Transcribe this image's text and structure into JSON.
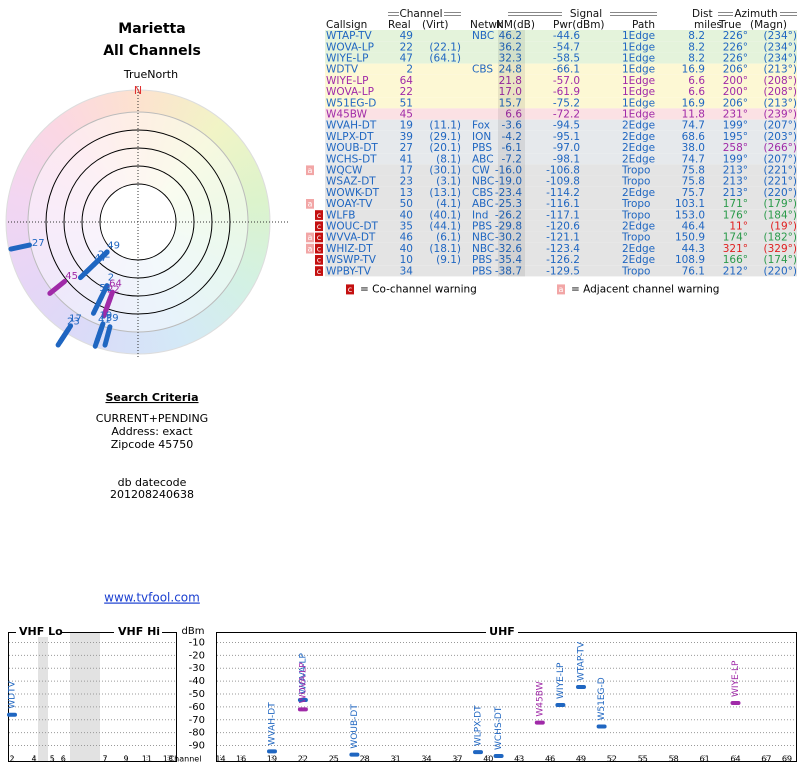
{
  "header": {
    "title": "Marietta",
    "subtitle": "All Channels"
  },
  "polar": {
    "north_label": "TrueNorth",
    "north_mark": "N",
    "stations": [
      {
        "label": "49",
        "azimuth": 226,
        "nm": 46.2,
        "color": "#1f66c1"
      },
      {
        "label": "22",
        "azimuth": 226,
        "nm": 36.2,
        "color": "#1f66c1"
      },
      {
        "label": "47",
        "azimuth": 226,
        "nm": 32.3,
        "color": "#1f66c1"
      },
      {
        "label": "2",
        "azimuth": 206,
        "nm": 24.8,
        "color": "#1f66c1"
      },
      {
        "label": "64",
        "azimuth": 200,
        "nm": 21.8,
        "color": "#a02aa8"
      },
      {
        "label": "22",
        "azimuth": 200,
        "nm": 17.0,
        "color": "#a02aa8"
      },
      {
        "label": "51",
        "azimuth": 206,
        "nm": 15.7,
        "color": "#1f66c1"
      },
      {
        "label": "45",
        "azimuth": 231,
        "nm": 6.6,
        "color": "#a02aa8"
      },
      {
        "label": "19",
        "azimuth": 199,
        "nm": -3.6,
        "color": "#1f66c1"
      },
      {
        "label": "39",
        "azimuth": 195,
        "nm": -4.2,
        "color": "#1f66c1"
      },
      {
        "label": "27",
        "azimuth": 258,
        "nm": -6.1,
        "color": "#1f66c1"
      },
      {
        "label": "41",
        "azimuth": 199,
        "nm": -7.2,
        "color": "#1f66c1"
      },
      {
        "label": "17",
        "azimuth": 213,
        "nm": -16.0,
        "color": "#1f66c1"
      },
      {
        "label": "23",
        "azimuth": 213,
        "nm": -19.0,
        "color": "#1f66c1"
      }
    ]
  },
  "search": {
    "title": "Search Criteria",
    "lines": [
      "CURRENT+PENDING",
      "Address: exact",
      "Zipcode 45750"
    ],
    "datecode_label": "db datecode",
    "datecode": "201208240638"
  },
  "link": "www.tvfool.com",
  "table": {
    "groups": {
      "channel": "Channel",
      "signal": "Signal",
      "dist": "Dist",
      "azimuth": "Azimuth"
    },
    "headers": {
      "call": "Callsign",
      "real": "Real",
      "virt": "(Virt)",
      "netwk": "Netwk",
      "nm": "NM(dB)",
      "pwr": "Pwr(dBm)",
      "path": "Path",
      "dist": "miles",
      "az": "True",
      "magn": "(Magn)"
    },
    "rows": [
      {
        "call": "WTAP-TV",
        "real": "49",
        "netwk": "NBC",
        "nm": "46.2",
        "pwr": "-44.6",
        "path": "1Edge",
        "dist": "8.2",
        "az": "226°",
        "magn": "(234°)",
        "color": "#1f66c1",
        "bg": "#e4f3db"
      },
      {
        "call": "WOVA-LP",
        "real": "22",
        "virt": "(22.1)",
        "nm": "36.2",
        "pwr": "-54.7",
        "path": "1Edge",
        "dist": "8.2",
        "az": "226°",
        "magn": "(234°)",
        "color": "#1f66c1",
        "bg": "#e4f3db"
      },
      {
        "call": "WIYE-LP",
        "real": "47",
        "virt": "(64.1)",
        "nm": "32.3",
        "pwr": "-58.5",
        "path": "1Edge",
        "dist": "8.2",
        "az": "226°",
        "magn": "(234°)",
        "color": "#1f66c1",
        "bg": "#e4f3db"
      },
      {
        "call": "WDTV",
        "real": "2",
        "netwk": "CBS",
        "nm": "24.8",
        "pwr": "-66.1",
        "path": "1Edge",
        "dist": "16.9",
        "az": "206°",
        "magn": "(213°)",
        "color": "#1f66c1",
        "bg": "#fdf8d4"
      },
      {
        "call": "WIYE-LP",
        "real": "64",
        "nm": "21.8",
        "pwr": "-57.0",
        "path": "1Edge",
        "dist": "6.6",
        "az": "200°",
        "magn": "(208°)",
        "color": "#a02aa8",
        "bg": "#fdf8d4"
      },
      {
        "call": "WOVA-LP",
        "real": "22",
        "nm": "17.0",
        "pwr": "-61.9",
        "path": "1Edge",
        "dist": "6.6",
        "az": "200°",
        "magn": "(208°)",
        "color": "#a02aa8",
        "bg": "#fdf8d4"
      },
      {
        "call": "W51EG-D",
        "real": "51",
        "nm": "15.7",
        "pwr": "-75.2",
        "path": "1Edge",
        "dist": "16.9",
        "az": "206°",
        "magn": "(213°)",
        "color": "#1f66c1",
        "bg": "#fdf8d4"
      },
      {
        "call": "W45BW",
        "real": "45",
        "nm": "6.6",
        "pwr": "-72.2",
        "path": "1Edge",
        "dist": "11.8",
        "az": "231°",
        "magn": "(239°)",
        "color": "#a02aa8",
        "bg": "#fbe1e4"
      },
      {
        "call": "WVAH-DT",
        "real": "19",
        "virt": "(11.1)",
        "netwk": "Fox",
        "nm": "-3.6",
        "pwr": "-94.5",
        "path": "2Edge",
        "dist": "74.7",
        "az": "199°",
        "magn": "(207°)",
        "color": "#1f66c1",
        "bg": "#e6e9ec"
      },
      {
        "call": "WLPX-DT",
        "real": "39",
        "virt": "(29.1)",
        "netwk": "ION",
        "nm": "-4.2",
        "pwr": "-95.1",
        "path": "2Edge",
        "dist": "68.6",
        "az": "195°",
        "magn": "(203°)",
        "color": "#1f66c1",
        "bg": "#e6e9ec"
      },
      {
        "call": "WOUB-DT",
        "real": "27",
        "virt": "(20.1)",
        "netwk": "PBS",
        "nm": "-6.1",
        "pwr": "-97.0",
        "path": "2Edge",
        "dist": "38.0",
        "az": "258°",
        "magn": "(266°)",
        "color": "#1f66c1",
        "az_color": "#a02aa8",
        "bg": "#e6e9ec"
      },
      {
        "call": "WCHS-DT",
        "real": "41",
        "virt": "(8.1)",
        "netwk": "ABC",
        "nm": "-7.2",
        "pwr": "-98.1",
        "path": "2Edge",
        "dist": "74.7",
        "az": "199°",
        "magn": "(207°)",
        "color": "#1f66c1",
        "bg": "#e6e9ec"
      },
      {
        "call": "WQCW",
        "real": "17",
        "virt": "(30.1)",
        "netwk": "CW",
        "nm": "-16.0",
        "pwr": "-106.8",
        "path": "Tropo",
        "dist": "75.8",
        "az": "213°",
        "magn": "(221°)",
        "color": "#1f66c1",
        "bg": "#e4e4e4",
        "warn": [
          "a"
        ]
      },
      {
        "call": "WSAZ-DT",
        "real": "23",
        "virt": "(3.1)",
        "netwk": "NBC",
        "nm": "-19.0",
        "pwr": "-109.8",
        "path": "Tropo",
        "dist": "75.8",
        "az": "213°",
        "magn": "(221°)",
        "color": "#1f66c1",
        "bg": "#e4e4e4"
      },
      {
        "call": "WOWK-DT",
        "real": "13",
        "virt": "(13.1)",
        "netwk": "CBS",
        "nm": "-23.4",
        "pwr": "-114.2",
        "path": "2Edge",
        "dist": "75.7",
        "az": "213°",
        "magn": "(220°)",
        "color": "#1f66c1",
        "bg": "#e4e4e4"
      },
      {
        "call": "WOAY-TV",
        "real": "50",
        "virt": "(4.1)",
        "netwk": "ABC",
        "nm": "-25.3",
        "pwr": "-116.1",
        "path": "Tropo",
        "dist": "103.1",
        "az": "171°",
        "magn": "(179°)",
        "color": "#1f66c1",
        "az_color": "#2a9a4a",
        "bg": "#e4e4e4",
        "warn": [
          "a"
        ]
      },
      {
        "call": "WLFB",
        "real": "40",
        "virt": "(40.1)",
        "netwk": "Ind",
        "nm": "-26.2",
        "pwr": "-117.1",
        "path": "Tropo",
        "dist": "153.0",
        "az": "176°",
        "magn": "(184°)",
        "color": "#1f66c1",
        "az_color": "#2a9a4a",
        "bg": "#e4e4e4",
        "warn": [
          "c"
        ]
      },
      {
        "call": "WOUC-DT",
        "real": "35",
        "virt": "(44.1)",
        "netwk": "PBS",
        "nm": "-29.8",
        "pwr": "-120.6",
        "path": "2Edge",
        "dist": "46.4",
        "az": "11°",
        "magn": "(19°)",
        "color": "#1f66c1",
        "az_color": "#e02020",
        "bg": "#e4e4e4",
        "warn": [
          "c"
        ]
      },
      {
        "call": "WVVA-DT",
        "real": "46",
        "virt": "(6.1)",
        "netwk": "NBC",
        "nm": "-30.2",
        "pwr": "-121.1",
        "path": "Tropo",
        "dist": "150.9",
        "az": "174°",
        "magn": "(182°)",
        "color": "#1f66c1",
        "az_color": "#2a9a4a",
        "bg": "#e4e4e4",
        "warn": [
          "a",
          "c"
        ]
      },
      {
        "call": "WHIZ-DT",
        "real": "40",
        "virt": "(18.1)",
        "netwk": "NBC",
        "nm": "-32.6",
        "pwr": "-123.4",
        "path": "2Edge",
        "dist": "44.3",
        "az": "321°",
        "magn": "(329°)",
        "color": "#1f66c1",
        "az_color": "#e02020",
        "bg": "#e4e4e4",
        "warn": [
          "a",
          "c"
        ]
      },
      {
        "call": "WSWP-TV",
        "real": "10",
        "virt": "(9.1)",
        "netwk": "PBS",
        "nm": "-35.4",
        "pwr": "-126.2",
        "path": "2Edge",
        "dist": "108.9",
        "az": "166°",
        "magn": "(174°)",
        "color": "#1f66c1",
        "az_color": "#2a9a4a",
        "bg": "#e4e4e4",
        "warn": [
          "c"
        ]
      },
      {
        "call": "WPBY-TV",
        "real": "34",
        "netwk": "PBS",
        "nm": "-38.7",
        "pwr": "-129.5",
        "path": "Tropo",
        "dist": "76.1",
        "az": "212°",
        "magn": "(220°)",
        "color": "#1f66c1",
        "bg": "#e4e4e4",
        "warn": [
          "c"
        ]
      }
    ],
    "legend": {
      "co_mark": "c",
      "co_text": "= Co-channel warning",
      "adj_mark": "a",
      "adj_text": "= Adjacent channel warning"
    }
  },
  "chart_data": {
    "type": "scatter",
    "sections": [
      "VHF Lo",
      "VHF Hi",
      "UHF"
    ],
    "y_label": "dBm",
    "x_label": "Channel",
    "ylim": [
      -5,
      -95
    ],
    "yticks": [
      -10,
      -20,
      -30,
      -40,
      -50,
      -60,
      -70,
      -80,
      -90
    ],
    "xlim": [
      2,
      69
    ],
    "xticks": [
      2,
      4,
      5,
      6,
      7,
      9,
      11,
      13,
      14,
      16,
      19,
      22,
      25,
      28,
      31,
      34,
      37,
      40,
      43,
      46,
      49,
      52,
      55,
      58,
      61,
      64,
      67,
      69
    ],
    "grid": true,
    "x": [
      2,
      19,
      22,
      22,
      27,
      39,
      41,
      45,
      47,
      49,
      51,
      64
    ],
    "values": [
      -66.1,
      -94.5,
      -54.7,
      -61.9,
      -97.0,
      -95.1,
      -98.1,
      -72.2,
      -58.5,
      -44.6,
      -75.2,
      -57.0
    ],
    "point_labels": [
      "WDTV",
      "WVAH-DT",
      "WOVA-LP",
      "WOVA-LP",
      "WOUB-DT",
      "WLPX-DT",
      "WCHS-DT",
      "W45BW",
      "WIYE-LP",
      "WTAP-TV",
      "W51EG-D",
      "WIYE-LP"
    ],
    "colors": [
      "#1f66c1",
      "#1f66c1",
      "#1f66c1",
      "#a02aa8",
      "#1f66c1",
      "#1f66c1",
      "#1f66c1",
      "#a02aa8",
      "#1f66c1",
      "#1f66c1",
      "#1f66c1",
      "#a02aa8"
    ]
  }
}
